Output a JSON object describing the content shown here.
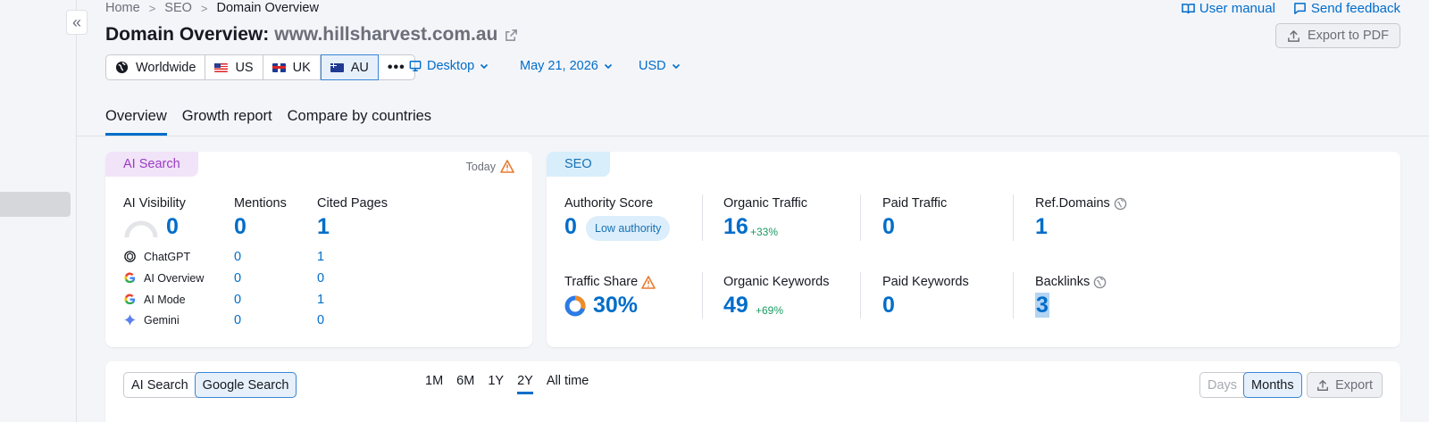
{
  "breadcrumb": {
    "home": "Home",
    "seo": "SEO",
    "current": "Domain Overview"
  },
  "top_links": {
    "user_manual": "User manual",
    "send_feedback": "Send feedback"
  },
  "header": {
    "title_prefix": "Domain Overview:",
    "domain": "www.hillsharvest.com.au",
    "export_pdf": "Export to PDF"
  },
  "databases": {
    "worldwide": "Worldwide",
    "us": "US",
    "uk": "UK",
    "au": "AU",
    "selected": "AU"
  },
  "filters": {
    "device": "Desktop",
    "date": "May 21, 2026",
    "currency": "USD"
  },
  "tabs": {
    "overview": "Overview",
    "growth": "Growth report",
    "compare": "Compare by countries",
    "active": "Overview"
  },
  "ai_card": {
    "tag": "AI Search",
    "today": "Today",
    "visibility_label": "AI Visibility",
    "visibility_value": "0",
    "mentions_label": "Mentions",
    "mentions_value": "0",
    "cited_label": "Cited Pages",
    "cited_value": "1",
    "rows": [
      {
        "name": "ChatGPT",
        "mentions": "0",
        "cited": "1"
      },
      {
        "name": "AI Overview",
        "mentions": "0",
        "cited": "0"
      },
      {
        "name": "AI Mode",
        "mentions": "0",
        "cited": "1"
      },
      {
        "name": "Gemini",
        "mentions": "0",
        "cited": "0"
      }
    ]
  },
  "seo_card": {
    "tag": "SEO",
    "authority_label": "Authority Score",
    "authority_value": "0",
    "authority_badge": "Low authority",
    "organic_traffic_label": "Organic Traffic",
    "organic_traffic_value": "16",
    "organic_traffic_delta": "+33%",
    "paid_traffic_label": "Paid Traffic",
    "paid_traffic_value": "0",
    "ref_domains_label": "Ref.Domains",
    "ref_domains_value": "1",
    "traffic_share_label": "Traffic Share",
    "traffic_share_value": "30%",
    "traffic_share_fraction": 0.3,
    "organic_keywords_label": "Organic Keywords",
    "organic_keywords_value": "49",
    "organic_keywords_delta": "+69%",
    "paid_keywords_label": "Paid Keywords",
    "paid_keywords_value": "0",
    "backlinks_label": "Backlinks",
    "backlinks_value": "3"
  },
  "trend_card": {
    "source_ai": "AI Search",
    "source_google": "Google Search",
    "source_selected": "Google Search",
    "periods": [
      "1M",
      "6M",
      "1Y",
      "2Y",
      "All time"
    ],
    "period_selected": "2Y",
    "granularity_days": "Days",
    "granularity_months": "Months",
    "export": "Export"
  },
  "colors": {
    "accent": "#006dca",
    "ai_tag": "#9a3cc4",
    "seo_tag": "#1771b4",
    "positive": "#179a62",
    "warning": "#e8792f"
  }
}
